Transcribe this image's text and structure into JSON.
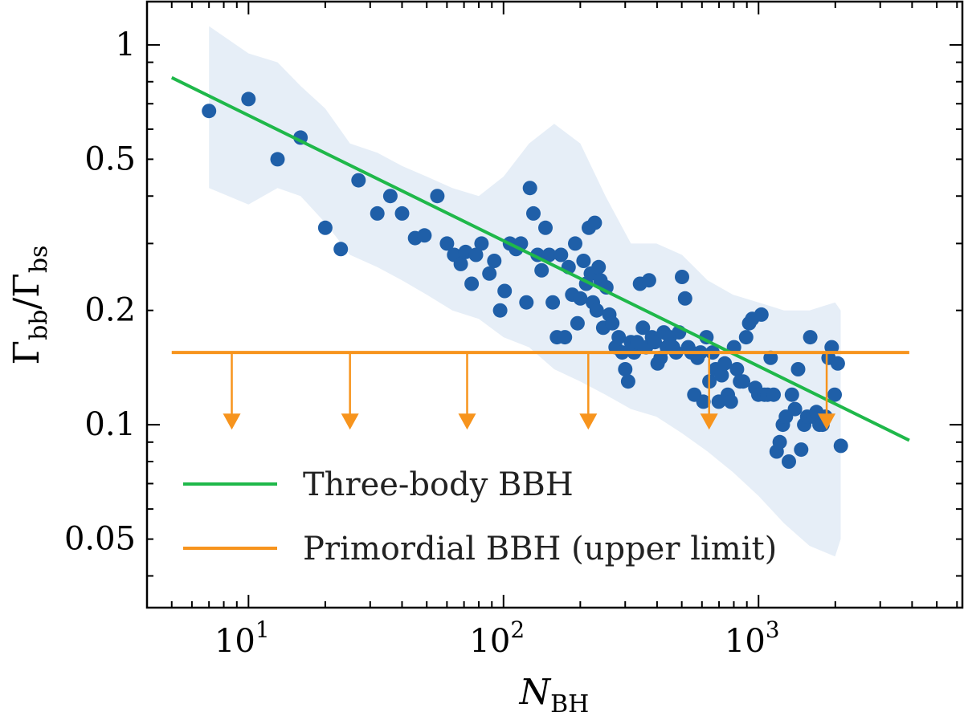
{
  "chart_data": {
    "type": "scatter",
    "title": "",
    "xlabel": {
      "main": "N",
      "sub": "BH"
    },
    "ylabel": {
      "num_main": "Γ",
      "num_sub": "bb",
      "slash": "/",
      "den_main": "Γ",
      "den_sub": "bs"
    },
    "xscale": "log",
    "yscale": "log",
    "xlim": [
      4,
      6300
    ],
    "ylim": [
      0.033,
      1.3
    ],
    "x_ticks": [
      {
        "value": 10,
        "base": "10",
        "exp": "1"
      },
      {
        "value": 100,
        "base": "10",
        "exp": "2"
      },
      {
        "value": 1000,
        "base": "10",
        "exp": "3"
      }
    ],
    "y_ticks": [
      {
        "value": 1,
        "label": "1"
      },
      {
        "value": 0.5,
        "label": "0.5"
      },
      {
        "value": 0.2,
        "label": "0.2"
      },
      {
        "value": 0.1,
        "label": "0.1"
      },
      {
        "value": 0.05,
        "label": "0.05"
      }
    ],
    "grid": false,
    "legend_position": "bottom-left",
    "colors": {
      "scatter": "#1f5fa8",
      "band": "#e6eef7",
      "three_body": "#1fb84a",
      "primordial": "#f7941d"
    },
    "band": {
      "x": [
        7,
        10,
        13,
        16,
        20,
        25,
        32,
        40,
        50,
        63,
        80,
        100,
        126,
        158,
        200,
        251,
        316,
        398,
        501,
        631,
        794,
        1000,
        1259,
        1585,
        1995,
        2100
      ],
      "upper": [
        1.12,
        0.95,
        0.9,
        0.78,
        0.68,
        0.55,
        0.52,
        0.48,
        0.45,
        0.42,
        0.4,
        0.45,
        0.55,
        0.62,
        0.55,
        0.4,
        0.3,
        0.3,
        0.28,
        0.24,
        0.22,
        0.21,
        0.2,
        0.2,
        0.21,
        0.2
      ],
      "lower": [
        0.42,
        0.38,
        0.42,
        0.4,
        0.34,
        0.28,
        0.26,
        0.24,
        0.22,
        0.2,
        0.19,
        0.17,
        0.16,
        0.14,
        0.13,
        0.12,
        0.11,
        0.105,
        0.095,
        0.085,
        0.075,
        0.065,
        0.055,
        0.048,
        0.045,
        0.05
      ]
    },
    "series": [
      {
        "name": "",
        "kind": "scatter",
        "points": [
          [
            7,
            0.67
          ],
          [
            10,
            0.72
          ],
          [
            13,
            0.5
          ],
          [
            16,
            0.57
          ],
          [
            20,
            0.33
          ],
          [
            23,
            0.29
          ],
          [
            27,
            0.44
          ],
          [
            32,
            0.36
          ],
          [
            36,
            0.4
          ],
          [
            40,
            0.36
          ],
          [
            45,
            0.31
          ],
          [
            49,
            0.315
          ],
          [
            55,
            0.4
          ],
          [
            60,
            0.3
          ],
          [
            64,
            0.28
          ],
          [
            68,
            0.265
          ],
          [
            71,
            0.285
          ],
          [
            75,
            0.235
          ],
          [
            78,
            0.28
          ],
          [
            82,
            0.3
          ],
          [
            88,
            0.25
          ],
          [
            92,
            0.27
          ],
          [
            97,
            0.2
          ],
          [
            101,
            0.225
          ],
          [
            106,
            0.3
          ],
          [
            112,
            0.29
          ],
          [
            117,
            0.3
          ],
          [
            123,
            0.21
          ],
          [
            127,
            0.42
          ],
          [
            131,
            0.36
          ],
          [
            136,
            0.28
          ],
          [
            141,
            0.255
          ],
          [
            146,
            0.33
          ],
          [
            151,
            0.28
          ],
          [
            156,
            0.21
          ],
          [
            162,
            0.17
          ],
          [
            168,
            0.28
          ],
          [
            174,
            0.17
          ],
          [
            180,
            0.26
          ],
          [
            186,
            0.22
          ],
          [
            191,
            0.3
          ],
          [
            195,
            0.185
          ],
          [
            200,
            0.215
          ],
          [
            206,
            0.27
          ],
          [
            211,
            0.235
          ],
          [
            216,
            0.33
          ],
          [
            220,
            0.25
          ],
          [
            224,
            0.21
          ],
          [
            228,
            0.34
          ],
          [
            232,
            0.2
          ],
          [
            236,
            0.26
          ],
          [
            240,
            0.24
          ],
          [
            246,
            0.18
          ],
          [
            253,
            0.23
          ],
          [
            260,
            0.195
          ],
          [
            267,
            0.185
          ],
          [
            275,
            0.16
          ],
          [
            283,
            0.17
          ],
          [
            292,
            0.155
          ],
          [
            300,
            0.14
          ],
          [
            308,
            0.13
          ],
          [
            316,
            0.165
          ],
          [
            325,
            0.155
          ],
          [
            334,
            0.165
          ],
          [
            343,
            0.235
          ],
          [
            352,
            0.18
          ],
          [
            362,
            0.16
          ],
          [
            372,
            0.24
          ],
          [
            382,
            0.17
          ],
          [
            392,
            0.165
          ],
          [
            402,
            0.145
          ],
          [
            413,
            0.15
          ],
          [
            425,
            0.175
          ],
          [
            437,
            0.16
          ],
          [
            449,
            0.17
          ],
          [
            462,
            0.16
          ],
          [
            475,
            0.155
          ],
          [
            488,
            0.175
          ],
          [
            501,
            0.245
          ],
          [
            515,
            0.215
          ],
          [
            530,
            0.16
          ],
          [
            545,
            0.155
          ],
          [
            560,
            0.12
          ],
          [
            576,
            0.15
          ],
          [
            592,
            0.155
          ],
          [
            608,
            0.115
          ],
          [
            625,
            0.17
          ],
          [
            642,
            0.13
          ],
          [
            660,
            0.155
          ],
          [
            679,
            0.14
          ],
          [
            698,
            0.115
          ],
          [
            717,
            0.135
          ],
          [
            737,
            0.145
          ],
          [
            758,
            0.12
          ],
          [
            779,
            0.115
          ],
          [
            801,
            0.16
          ],
          [
            823,
            0.14
          ],
          [
            846,
            0.13
          ],
          [
            870,
            0.13
          ],
          [
            894,
            0.17
          ],
          [
            919,
            0.185
          ],
          [
            945,
            0.19
          ],
          [
            971,
            0.125
          ],
          [
            998,
            0.12
          ],
          [
            1026,
            0.195
          ],
          [
            1055,
            0.12
          ],
          [
            1085,
            0.12
          ],
          [
            1115,
            0.15
          ],
          [
            1146,
            0.12
          ],
          [
            1178,
            0.085
          ],
          [
            1211,
            0.09
          ],
          [
            1245,
            0.1
          ],
          [
            1280,
            0.105
          ],
          [
            1315,
            0.08
          ],
          [
            1352,
            0.12
          ],
          [
            1390,
            0.11
          ],
          [
            1429,
            0.14
          ],
          [
            1469,
            0.086
          ],
          [
            1510,
            0.1
          ],
          [
            1552,
            0.105
          ],
          [
            1595,
            0.17
          ],
          [
            1640,
            0.105
          ],
          [
            1686,
            0.108
          ],
          [
            1733,
            0.1
          ],
          [
            1781,
            0.1
          ],
          [
            1831,
            0.105
          ],
          [
            1882,
            0.15
          ],
          [
            1935,
            0.16
          ],
          [
            1989,
            0.12
          ],
          [
            2045,
            0.145
          ],
          [
            2102,
            0.088
          ]
        ]
      },
      {
        "name": "Three-body BBH",
        "kind": "line",
        "points": [
          [
            5,
            0.82
          ],
          [
            3900,
            0.091
          ]
        ]
      },
      {
        "name": "Primordial BBH (upper limit)",
        "kind": "upper-limit",
        "points": [
          [
            5,
            0.155
          ],
          [
            3900,
            0.155
          ]
        ],
        "arrow_x": [
          8.6,
          25,
          72,
          215,
          640,
          1850
        ],
        "arrow_to": 0.098
      }
    ]
  }
}
